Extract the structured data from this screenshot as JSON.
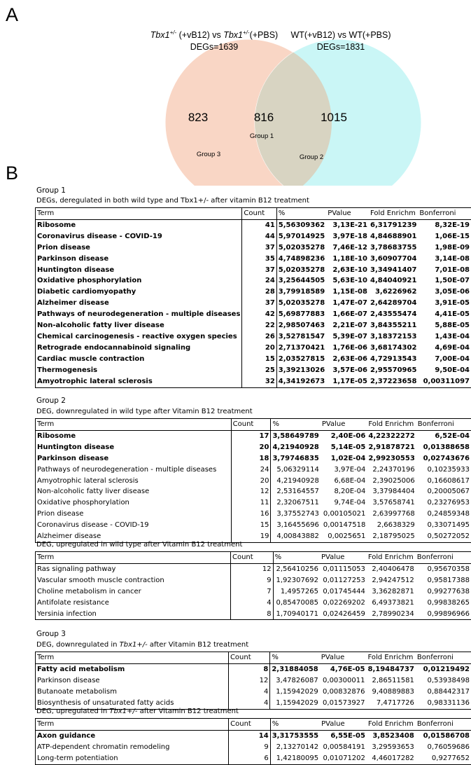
{
  "panels": {
    "a": "A",
    "b": "B"
  },
  "venn": {
    "left_title_prefix": "Tbx1",
    "left_title_sup": "+/-",
    "left_title_mid": " (+vB12) vs ",
    "left_title_prefix2": "Tbx1",
    "left_title_sup2": "+/-",
    "left_title_end": "(+PBS)",
    "left_degs": "DEGs=1639",
    "right_title": "WT(+vB12) vs WT(+PBS)",
    "right_degs": "DEGs=1831",
    "left_only": "823",
    "overlap": "816",
    "right_only": "1015",
    "group1_label": "Group 1",
    "group2_label": "Group 2",
    "group3_label": "Group 3",
    "left_color": "#f9d3c0",
    "right_color": "#b8f3f3"
  },
  "columns": [
    "Term",
    "Count",
    "%",
    "PValue",
    "Fold Enrichm",
    "Bonferroni"
  ],
  "group1": {
    "title": "Group 1",
    "caption": "DEGs, deregulated in both wild type and Tbx1+/- after vitamin B12 treatment",
    "rows": [
      [
        "Ribosome",
        "41",
        "5,56309362",
        "3,13E-21",
        "6,31791239",
        "8,32E-19"
      ],
      [
        "Coronavirus disease - COVID-19",
        "44",
        "5,97014925",
        "3,97E-18",
        "4,84688901",
        "1,06E-15"
      ],
      [
        "Prion disease",
        "37",
        "5,02035278",
        "7,46E-12",
        "3,78683755",
        "1,98E-09"
      ],
      [
        "Parkinson disease",
        "35",
        "4,74898236",
        "1,18E-10",
        "3,60907704",
        "3,14E-08"
      ],
      [
        "Huntington disease",
        "37",
        "5,02035278",
        "2,63E-10",
        "3,34941407",
        "7,01E-08"
      ],
      [
        "Oxidative phosphorylation",
        "24",
        "3,25644505",
        "5,63E-10",
        "4,84040921",
        "1,50E-07"
      ],
      [
        "Diabetic cardiomyopathy",
        "28",
        "3,79918589",
        "1,15E-08",
        "3,6226962",
        "3,05E-06"
      ],
      [
        "Alzheimer disease",
        "37",
        "5,02035278",
        "1,47E-07",
        "2,64289704",
        "3,91E-05"
      ],
      [
        "Pathways of neurodegeneration - multiple diseases",
        "42",
        "5,69877883",
        "1,66E-07",
        "2,43555474",
        "4,41E-05"
      ],
      [
        "Non-alcoholic fatty liver disease",
        "22",
        "2,98507463",
        "2,21E-07",
        "3,84355211",
        "5,88E-05"
      ],
      [
        "Chemical carcinogenesis - reactive oxygen species",
        "26",
        "3,52781547",
        "5,39E-07",
        "3,18372153",
        "1,43E-04"
      ],
      [
        "Retrograde endocannabinoid signaling",
        "20",
        "2,71370421",
        "1,76E-06",
        "3,68174302",
        "4,69E-04"
      ],
      [
        "Cardiac muscle contraction",
        "15",
        "2,03527815",
        "2,63E-06",
        "4,72913543",
        "7,00E-04"
      ],
      [
        "Thermogenesis",
        "25",
        "3,39213026",
        "3,57E-06",
        "2,95570965",
        "9,50E-04"
      ],
      [
        "Amyotrophic lateral sclerosis",
        "32",
        "4,34192673",
        "1,17E-05",
        "2,37223658",
        "0,00311097"
      ]
    ]
  },
  "group2": {
    "title": "Group 2",
    "down_caption": "DEG, downregulated in wild type after Vitamin B12 treatment",
    "down_rows": [
      [
        "Ribosome",
        "17",
        "3,58649789",
        "2,40E-06",
        "4,22322272",
        "6,52E-04"
      ],
      [
        "Huntington disease",
        "20",
        "4,21940928",
        "5,14E-05",
        "2,91878721",
        "0,01388658"
      ],
      [
        "Parkinson disease",
        "18",
        "3,79746835",
        "1,02E-04",
        "2,99230553",
        "0,02743676"
      ],
      [
        "Pathways of neurodegeneration - multiple diseases",
        "24",
        "5,06329114",
        "3,97E-04",
        "2,24370196",
        "0,10235933"
      ],
      [
        "Amyotrophic lateral sclerosis",
        "20",
        "4,21940928",
        "6,68E-04",
        "2,39025006",
        "0,16608617"
      ],
      [
        "Non-alcoholic fatty liver disease",
        "12",
        "2,53164557",
        "8,20E-04",
        "3,37984404",
        "0,20005067"
      ],
      [
        "Oxidative phosphorylation",
        "11",
        "2,32067511",
        "9,74E-04",
        "3,57658741",
        "0,23276953"
      ],
      [
        "Prion disease",
        "16",
        "3,37552743",
        "0,00105021",
        "2,63997768",
        "0,24859348"
      ],
      [
        "Coronavirus disease - COVID-19",
        "15",
        "3,16455696",
        "0,00147518",
        "2,6638329",
        "0,33071495"
      ],
      [
        "Alzheimer disease",
        "19",
        "4,00843882",
        "0,0025651",
        "2,18795025",
        "0,50272052"
      ]
    ],
    "up_caption": "DEG, upregulated in wild type after Vitamin B12 treatment",
    "up_rows": [
      [
        "Ras signaling pathway",
        "12",
        "2,56410256",
        "0,01115053",
        "2,40406478",
        "0,95670358"
      ],
      [
        "Vascular smooth muscle contraction",
        "9",
        "1,92307692",
        "0,01127253",
        "2,94247512",
        "0,95817388"
      ],
      [
        "Choline metabolism in cancer",
        "7",
        "1,4957265",
        "0,01745444",
        "3,36282871",
        "0,99277638"
      ],
      [
        "Antifolate resistance",
        "4",
        "0,85470085",
        "0,02269202",
        "6,49373821",
        "0,99838265"
      ],
      [
        "Yersinia infection",
        "8",
        "1,70940171",
        "0,02426459",
        "2,78990234",
        "0,99896966"
      ]
    ]
  },
  "group3": {
    "title": "Group 3",
    "down_caption_pre": "DEG, downregulated in ",
    "down_caption_it": "Tbx1+/-",
    "down_caption_post": " after Vitamin B12 treatment",
    "down_rows": [
      [
        "Fatty acid metabolism",
        "8",
        "2,31884058",
        "4,76E-05",
        "8,19484737",
        "0,01219492"
      ],
      [
        "Parkinson disease",
        "12",
        "3,47826087",
        "0,00300011",
        "2,86511581",
        "0,53938498"
      ],
      [
        "Butanoate metabolism",
        "4",
        "1,15942029",
        "0,00832876",
        "9,40889883",
        "0,88442317"
      ],
      [
        "Biosynthesis of unsaturated fatty acids",
        "4",
        "1,15942029",
        "0,01573927",
        "7,4717726",
        "0,98331136"
      ]
    ],
    "up_caption_pre": "DEG, upregulated in ",
    "up_caption_it": "Tbx1+/-",
    "up_caption_post": " after Vitamin B12 treatment",
    "up_rows": [
      [
        "Axon guidance",
        "14",
        "3,31753555",
        "6,55E-05",
        "3,8523408",
        "0,01586708"
      ],
      [
        "ATP-dependent chromatin remodeling",
        "9",
        "2,13270142",
        "0,00584191",
        "3,29593653",
        "0,76059686"
      ],
      [
        "Long-term potentiation",
        "6",
        "1,42180095",
        "0,01071202",
        "4,46017282",
        "0,9277652"
      ]
    ]
  }
}
